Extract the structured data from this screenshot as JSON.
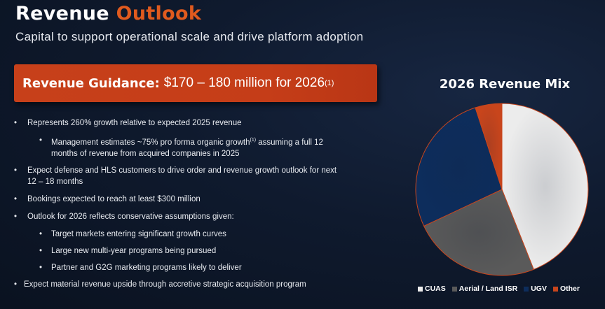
{
  "header": {
    "title_main": "Revenue",
    "title_accent": "Outlook",
    "subtitle": "Capital to support operational scale and drive platform adoption"
  },
  "guidance": {
    "label": "Revenue Guidance:",
    "value": "$170 – 180 million for 2026",
    "footnote": "(1)"
  },
  "bullets": [
    {
      "level": 1,
      "text": "Represents 260% growth relative to expected 2025 revenue"
    },
    {
      "level": 2,
      "text_before": "Management estimates ~75% pro forma organic growth",
      "footnote": "(1)",
      "text_after": " assuming a full 12 months of revenue from acquired companies in 2025"
    },
    {
      "level": 1,
      "text": "Expect defense and HLS customers to drive order and revenue growth outlook for next 12 – 18 months"
    },
    {
      "level": 1,
      "text": "Bookings expected to reach at least $300 million"
    },
    {
      "level": 1,
      "text": "Outlook for 2026 reflects conservative assumptions given:"
    },
    {
      "level": 2,
      "text": "Target markets entering significant growth curves"
    },
    {
      "level": 2,
      "text": "Large new multi-year programs being pursued"
    },
    {
      "level": 2,
      "text": "Partner and G2G marketing programs likely to deliver"
    },
    {
      "level": 1,
      "text": "Expect material revenue upside through accretive strategic acquisition program"
    }
  ],
  "chart_data": {
    "type": "pie",
    "title": "2026 Revenue Mix",
    "legend_position": "bottom",
    "start_angle_deg": 0,
    "slices": [
      {
        "label": "CUAS",
        "value": 44,
        "color": "#ececec"
      },
      {
        "label": "Aerial / Land ISR",
        "value": 24,
        "color": "#5a5a5a"
      },
      {
        "label": "UGV",
        "value": 27,
        "color": "#0d2d5c"
      },
      {
        "label": "Other",
        "value": 5,
        "color": "#c8451c"
      }
    ]
  }
}
